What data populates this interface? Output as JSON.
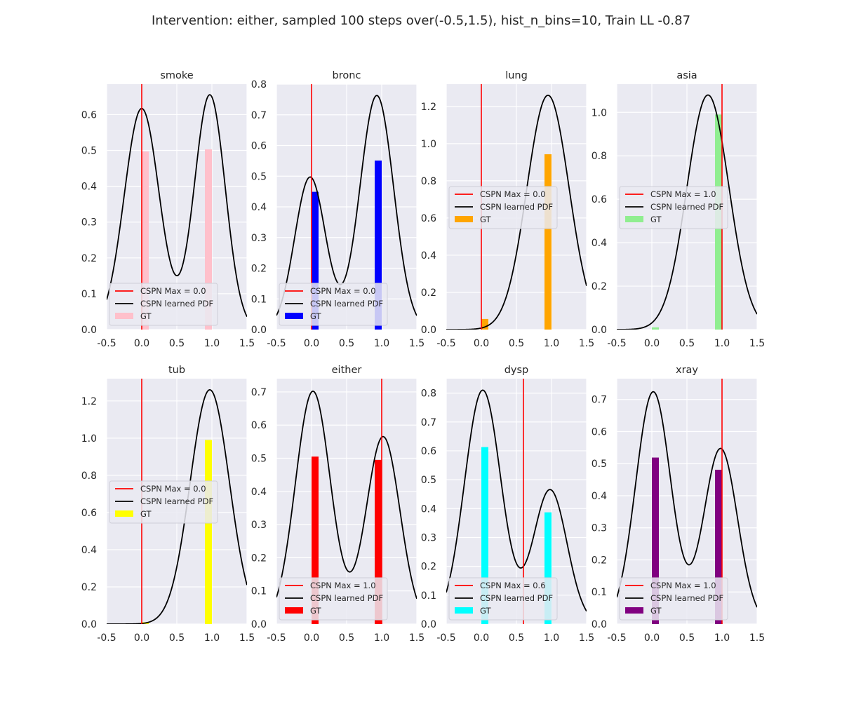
{
  "figure": {
    "title": "Intervention: either, sampled 100 steps over(-0.5,1.5), hist_n_bins=10, Train LL -0.87"
  },
  "chart_data": [
    {
      "type": "bar",
      "title": "smoke",
      "xlim": [
        -0.5,
        1.5
      ],
      "ylim": [
        0,
        0.685
      ],
      "xticks": [
        "-0.5",
        "0.0",
        "0.5",
        "1.0",
        "1.5"
      ],
      "yticks": [
        0,
        0.1,
        0.2,
        0.3,
        0.4,
        0.5,
        0.6
      ],
      "bar_color": "#ffc0cb",
      "bars": [
        {
          "x": 0.05,
          "value": 0.497
        },
        {
          "x": 0.95,
          "value": 0.503
        }
      ],
      "max_line": {
        "x": 0.0,
        "label": "CSPN Max = 0.0"
      },
      "pdf": {
        "label": "CSPN learned PDF",
        "peaks": [
          {
            "mu": 0.0,
            "sigma": 0.25,
            "h": 0.617
          },
          {
            "mu": 0.97,
            "sigma": 0.22,
            "h": 0.655
          }
        ]
      },
      "gt_label": "GT",
      "legend": "lower-left",
      "grid": true
    },
    {
      "type": "bar",
      "title": "bronc",
      "xlim": [
        -0.5,
        1.5
      ],
      "ylim": [
        0,
        0.8
      ],
      "xticks": [
        "-0.5",
        "0.0",
        "0.5",
        "1.0",
        "1.5"
      ],
      "yticks": [
        0,
        0.1,
        0.2,
        0.3,
        0.4,
        0.5,
        0.6,
        0.7,
        0.8
      ],
      "bar_color": "#0000ff",
      "bars": [
        {
          "x": 0.05,
          "value": 0.449
        },
        {
          "x": 0.95,
          "value": 0.551
        }
      ],
      "max_line": {
        "x": 0.0,
        "label": "CSPN Max = 0.0"
      },
      "pdf": {
        "label": "CSPN learned PDF",
        "peaks": [
          {
            "mu": -0.02,
            "sigma": 0.22,
            "h": 0.497
          },
          {
            "mu": 0.93,
            "sigma": 0.24,
            "h": 0.763
          }
        ]
      },
      "gt_label": "GT",
      "legend": "lower-left",
      "grid": true
    },
    {
      "type": "bar",
      "title": "lung",
      "xlim": [
        -0.5,
        1.5
      ],
      "ylim": [
        0,
        1.32
      ],
      "xticks": [
        "-0.5",
        "0.0",
        "0.5",
        "1.0",
        "1.5"
      ],
      "yticks": [
        0,
        0.2,
        0.4,
        0.6,
        0.8,
        1.0,
        1.2
      ],
      "bar_color": "#ffa500",
      "bars": [
        {
          "x": 0.05,
          "value": 0.057
        },
        {
          "x": 0.95,
          "value": 0.943
        }
      ],
      "max_line": {
        "x": 0.0,
        "label": "CSPN Max = 0.0"
      },
      "pdf": {
        "label": "CSPN learned PDF",
        "peaks": [
          {
            "mu": 0.95,
            "sigma": 0.3,
            "h": 1.26
          }
        ]
      },
      "gt_label": "GT",
      "legend": "center-left",
      "grid": true
    },
    {
      "type": "bar",
      "title": "asia",
      "xlim": [
        -0.5,
        1.5
      ],
      "ylim": [
        0,
        1.13
      ],
      "xticks": [
        "-0.5",
        "0.0",
        "0.5",
        "1.0",
        "1.5"
      ],
      "yticks": [
        0,
        0.2,
        0.4,
        0.6,
        0.8,
        1.0
      ],
      "bar_color": "#90ee90",
      "bars": [
        {
          "x": 0.05,
          "value": 0.01
        },
        {
          "x": 0.95,
          "value": 0.99
        }
      ],
      "max_line": {
        "x": 1.0,
        "label": "CSPN Max = 1.0"
      },
      "pdf": {
        "label": "CSPN learned PDF",
        "peaks": [
          {
            "mu": 0.8,
            "sigma": 0.3,
            "h": 1.08
          }
        ]
      },
      "gt_label": "GT",
      "legend": "center-left",
      "grid": true
    },
    {
      "type": "bar",
      "title": "tub",
      "xlim": [
        -0.5,
        1.5
      ],
      "ylim": [
        0,
        1.32
      ],
      "xticks": [
        "-0.5",
        "0.0",
        "0.5",
        "1.0",
        "1.5"
      ],
      "yticks": [
        0,
        0.2,
        0.4,
        0.6,
        0.8,
        1.0,
        1.2
      ],
      "bar_color": "#ffff00",
      "bars": [
        {
          "x": 0.05,
          "value": 0.01
        },
        {
          "x": 0.95,
          "value": 0.99
        }
      ],
      "max_line": {
        "x": 0.0,
        "label": "CSPN Max = 0.0"
      },
      "pdf": {
        "label": "CSPN learned PDF",
        "peaks": [
          {
            "mu": 0.97,
            "sigma": 0.28,
            "h": 1.26
          }
        ]
      },
      "gt_label": "GT",
      "legend": "center-left",
      "grid": true
    },
    {
      "type": "bar",
      "title": "either",
      "xlim": [
        -0.5,
        1.5
      ],
      "ylim": [
        0,
        0.74
      ],
      "xticks": [
        "-0.5",
        "0.0",
        "0.5",
        "1.0",
        "1.5"
      ],
      "yticks": [
        0,
        0.1,
        0.2,
        0.3,
        0.4,
        0.5,
        0.6,
        0.7
      ],
      "bar_color": "#ff0000",
      "bars": [
        {
          "x": 0.05,
          "value": 0.505
        },
        {
          "x": 0.95,
          "value": 0.495
        }
      ],
      "max_line": {
        "x": 1.0,
        "label": "CSPN Max = 1.0"
      },
      "pdf": {
        "label": "CSPN learned PDF",
        "peaks": [
          {
            "mu": 0.02,
            "sigma": 0.25,
            "h": 0.702
          },
          {
            "mu": 1.02,
            "sigma": 0.24,
            "h": 0.565
          }
        ]
      },
      "gt_label": "GT",
      "legend": "lower-left",
      "grid": true
    },
    {
      "type": "bar",
      "title": "dysp",
      "xlim": [
        -0.5,
        1.5
      ],
      "ylim": [
        0,
        0.85
      ],
      "xticks": [
        "-0.5",
        "0.0",
        "0.5",
        "1.0",
        "1.5"
      ],
      "yticks": [
        0,
        0.1,
        0.2,
        0.3,
        0.4,
        0.5,
        0.6,
        0.7,
        0.8
      ],
      "bar_color": "#00ffff",
      "bars": [
        {
          "x": 0.05,
          "value": 0.613
        },
        {
          "x": 0.95,
          "value": 0.387
        }
      ],
      "max_line": {
        "x": 0.6,
        "label": "CSPN Max = 0.6"
      },
      "pdf": {
        "label": "CSPN learned PDF",
        "peaks": [
          {
            "mu": 0.02,
            "sigma": 0.26,
            "h": 0.81
          },
          {
            "mu": 0.98,
            "sigma": 0.24,
            "h": 0.465
          }
        ]
      },
      "gt_label": "GT",
      "legend": "lower-left",
      "grid": true
    },
    {
      "type": "bar",
      "title": "xray",
      "xlim": [
        -0.5,
        1.5
      ],
      "ylim": [
        0,
        0.765
      ],
      "xticks": [
        "-0.5",
        "0.0",
        "0.5",
        "1.0",
        "1.5"
      ],
      "yticks": [
        0,
        0.1,
        0.2,
        0.3,
        0.4,
        0.5,
        0.6,
        0.7
      ],
      "bar_color": "#800080",
      "bars": [
        {
          "x": 0.05,
          "value": 0.519
        },
        {
          "x": 0.95,
          "value": 0.481
        }
      ],
      "max_line": {
        "x": 1.0,
        "label": "CSPN Max = 1.0"
      },
      "pdf": {
        "label": "CSPN learned PDF",
        "peaks": [
          {
            "mu": 0.02,
            "sigma": 0.25,
            "h": 0.724
          },
          {
            "mu": 0.98,
            "sigma": 0.24,
            "h": 0.547
          }
        ]
      },
      "gt_label": "GT",
      "legend": "lower-left",
      "grid": true
    }
  ]
}
